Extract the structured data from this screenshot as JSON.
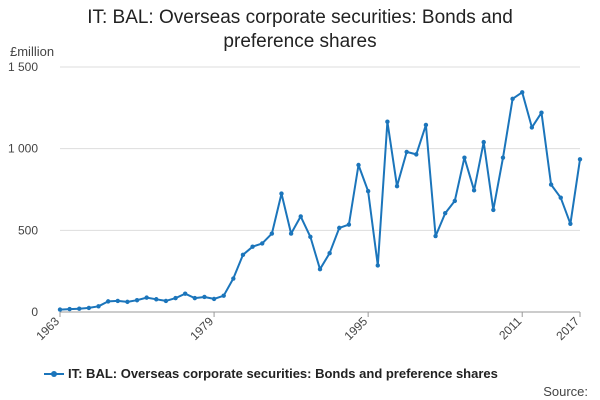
{
  "chart_data": {
    "type": "line",
    "title": "IT: BAL: Overseas corporate securities: Bonds and preference shares",
    "ylabel": "£million",
    "xlabel": "",
    "ylim": [
      0,
      1500
    ],
    "yticks": [
      0,
      500,
      1000,
      1500
    ],
    "ytick_labels": [
      "0",
      "500",
      "1 000",
      "1 500"
    ],
    "xlim": [
      1963,
      2017
    ],
    "xticks": [
      1963,
      1979,
      1995,
      2011,
      2017
    ],
    "xtick_labels": [
      "1963",
      "1979",
      "1995",
      "2011",
      "2017"
    ],
    "grid": true,
    "legend_position": "bottom",
    "colors": {
      "series": "#1b75bb",
      "grid": "#dddddd",
      "axis": "#999999"
    },
    "x": [
      1963,
      1964,
      1965,
      1966,
      1967,
      1968,
      1969,
      1970,
      1971,
      1972,
      1973,
      1974,
      1975,
      1976,
      1977,
      1978,
      1979,
      1980,
      1981,
      1982,
      1983,
      1984,
      1985,
      1986,
      1987,
      1988,
      1989,
      1990,
      1991,
      1992,
      1993,
      1994,
      1995,
      1996,
      1997,
      1998,
      1999,
      2000,
      2001,
      2002,
      2003,
      2004,
      2005,
      2006,
      2007,
      2008,
      2009,
      2010,
      2011,
      2012,
      2013,
      2014,
      2015,
      2016,
      2017
    ],
    "series": [
      {
        "name": "IT: BAL: Overseas corporate securities: Bonds and preference shares",
        "values": [
          15,
          18,
          20,
          25,
          35,
          65,
          68,
          62,
          72,
          88,
          78,
          68,
          85,
          112,
          85,
          92,
          80,
          100,
          205,
          350,
          400,
          420,
          480,
          725,
          480,
          585,
          460,
          262,
          360,
          515,
          535,
          900,
          740,
          285,
          1165,
          770,
          980,
          965,
          1145,
          465,
          605,
          680,
          945,
          745,
          1040,
          625,
          945,
          1305,
          1345,
          1130,
          1220,
          780,
          700,
          540,
          935
        ]
      }
    ]
  },
  "source_label": "Source:"
}
